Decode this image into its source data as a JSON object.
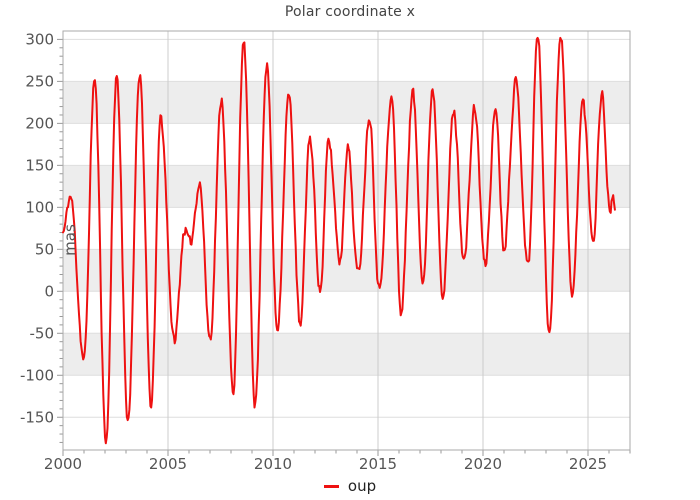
{
  "chart_data": {
    "type": "line",
    "title": "Polar coordinate x",
    "xlabel": "",
    "ylabel": "mas",
    "legend": {
      "label": "oup",
      "position": "bottom-center"
    },
    "xlim": [
      2000,
      2027
    ],
    "ylim": [
      -189,
      310
    ],
    "x_ticks": [
      2000,
      2005,
      2010,
      2015,
      2020,
      2025
    ],
    "y_ticks": [
      -150,
      -100,
      -50,
      0,
      50,
      100,
      150,
      200,
      250,
      300
    ],
    "x_minor_step": 1,
    "y_minor_step": 10,
    "grid": true,
    "bands": [
      [
        -100,
        -50
      ],
      [
        0,
        50
      ],
      [
        100,
        150
      ],
      [
        200,
        250
      ]
    ],
    "colors": {
      "series": "#ee1111",
      "band": "#ededed",
      "h_grid": "#dedede",
      "v_grid": "#cccccc",
      "frame": "#aaaaaa",
      "tick": "#999999",
      "tick_label": "#555555",
      "title": "#444444",
      "legend_text": "#222222"
    },
    "series": [
      {
        "name": "oup",
        "color": "#ee1111",
        "line_width": 2,
        "anchors": [
          [
            2000.0,
            70
          ],
          [
            2000.35,
            113
          ],
          [
            2001.0,
            -82
          ],
          [
            2001.5,
            253
          ],
          [
            2002.05,
            -180
          ],
          [
            2002.55,
            258
          ],
          [
            2003.1,
            -158
          ],
          [
            2003.65,
            262
          ],
          [
            2004.2,
            -138
          ],
          [
            2004.65,
            206
          ],
          [
            2005.3,
            -60
          ],
          [
            2005.8,
            75
          ],
          [
            2006.05,
            55
          ],
          [
            2006.5,
            130
          ],
          [
            2007.0,
            -56
          ],
          [
            2007.55,
            230
          ],
          [
            2008.1,
            -120
          ],
          [
            2008.6,
            297
          ],
          [
            2009.15,
            -132
          ],
          [
            2009.7,
            272
          ],
          [
            2010.2,
            -45
          ],
          [
            2010.75,
            233
          ],
          [
            2011.3,
            -43
          ],
          [
            2011.75,
            184
          ],
          [
            2012.25,
            2
          ],
          [
            2012.65,
            178
          ],
          [
            2013.2,
            37
          ],
          [
            2013.55,
            174
          ],
          [
            2014.05,
            20
          ],
          [
            2014.6,
            210
          ],
          [
            2015.05,
            3
          ],
          [
            2015.65,
            229
          ],
          [
            2016.1,
            -25
          ],
          [
            2016.65,
            237
          ],
          [
            2017.15,
            15
          ],
          [
            2017.6,
            243
          ],
          [
            2018.1,
            -2
          ],
          [
            2018.6,
            215
          ],
          [
            2019.1,
            37
          ],
          [
            2019.6,
            218
          ],
          [
            2020.1,
            30
          ],
          [
            2020.6,
            218
          ],
          [
            2021.0,
            52
          ],
          [
            2021.55,
            250
          ],
          [
            2022.15,
            30
          ],
          [
            2022.6,
            305
          ],
          [
            2023.15,
            -48
          ],
          [
            2023.7,
            307
          ],
          [
            2024.25,
            -7
          ],
          [
            2024.75,
            226
          ],
          [
            2025.25,
            63
          ],
          [
            2025.65,
            237
          ],
          [
            2026.05,
            95
          ],
          [
            2026.15,
            112
          ],
          [
            2026.3,
            100
          ]
        ]
      }
    ],
    "sampling": {
      "dt": 0.04,
      "noise_sigma": 6,
      "noise_phi": 0.55,
      "seed": 11
    }
  }
}
